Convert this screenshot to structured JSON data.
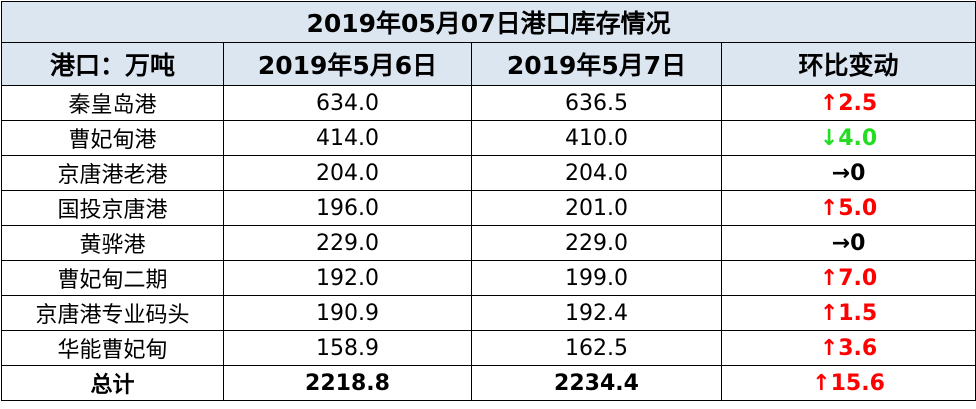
{
  "table": {
    "title": "2019年05月07日港口库存情况",
    "header": [
      "港口：万吨",
      "2019年5月6日",
      "2019年5月7日",
      "环比变动"
    ],
    "rows": [
      [
        "秦皇岛港",
        "634.0",
        "636.5",
        "↑2.5"
      ],
      [
        "曹妃甸港",
        "414.0",
        "410.0",
        "↓4.0"
      ],
      [
        "京唐港老港",
        "204.0",
        "204.0",
        "→0"
      ],
      [
        "国投京唐港",
        "196.0",
        "201.0",
        "↑5.0"
      ],
      [
        "黄骅港",
        "229.0",
        "229.0",
        "→0"
      ],
      [
        "曹妃甸二期",
        "192.0",
        "199.0",
        "↑7.0"
      ],
      [
        "京唐港专业码头",
        "190.9",
        "192.4",
        "↑1.5"
      ],
      [
        "华能曹妃甸",
        "158.9",
        "162.5",
        "↑3.6"
      ]
    ],
    "row_change_colors": [
      "#ff0000",
      "#22dd22",
      "#000000",
      "#ff0000",
      "#000000",
      "#ff0000",
      "#ff0000",
      "#ff0000"
    ],
    "total": [
      "总计",
      "2218.8",
      "2234.4",
      "↑15.6"
    ],
    "total_change_color": "#ff0000",
    "header_background": "#dce6f1"
  }
}
